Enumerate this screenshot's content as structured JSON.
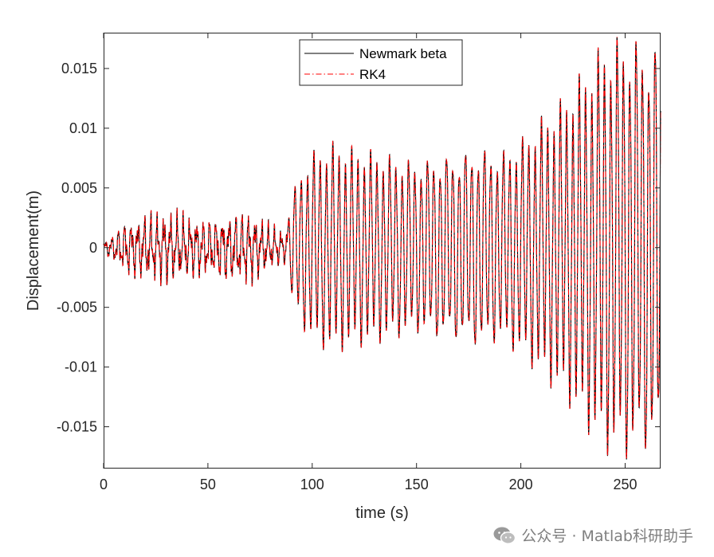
{
  "chart_data": {
    "type": "line",
    "title": "",
    "xlabel": "time (s)",
    "ylabel": "Displacement(m)",
    "xlim": [
      0,
      267
    ],
    "ylim": [
      -0.0185,
      0.018
    ],
    "xticks": [
      0,
      50,
      100,
      150,
      200,
      250
    ],
    "xtick_labels": [
      "0",
      "50",
      "100",
      "150",
      "200",
      "250"
    ],
    "yticks": [
      -0.015,
      -0.01,
      -0.005,
      0,
      0.005,
      0.01,
      0.015
    ],
    "ytick_labels": [
      "-0.015",
      "-0.01",
      "-0.005",
      "0",
      "0.005",
      "0.01",
      "0.015"
    ],
    "legend_position": "top-center",
    "series": [
      {
        "name": "Newmark beta",
        "color": "#000000",
        "style": "solid",
        "envelope_t": [
          0,
          5,
          10,
          20,
          30,
          40,
          50,
          60,
          70,
          80,
          87,
          90,
          95,
          100,
          110,
          120,
          130,
          140,
          150,
          160,
          170,
          180,
          190,
          200,
          210,
          220,
          230,
          240,
          250,
          260,
          267
        ],
        "envelope_amp": [
          0.0005,
          0.0012,
          0.0022,
          0.0028,
          0.0031,
          0.0027,
          0.0024,
          0.0029,
          0.0031,
          0.0019,
          0.0014,
          0.0043,
          0.0065,
          0.0078,
          0.0084,
          0.0079,
          0.0077,
          0.0074,
          0.0072,
          0.0078,
          0.0082,
          0.0086,
          0.0079,
          0.0088,
          0.0104,
          0.0118,
          0.0142,
          0.0168,
          0.0179,
          0.0178,
          0.0176
        ]
      },
      {
        "name": "RK4",
        "color": "#ff0000",
        "style": "dashdot",
        "envelope_t": [
          0,
          5,
          10,
          20,
          30,
          40,
          50,
          60,
          70,
          80,
          87,
          90,
          95,
          100,
          110,
          120,
          130,
          140,
          150,
          160,
          170,
          180,
          190,
          200,
          210,
          220,
          230,
          240,
          250,
          260,
          267
        ],
        "envelope_amp": [
          0.0005,
          0.0012,
          0.0022,
          0.0028,
          0.0031,
          0.0027,
          0.0024,
          0.0029,
          0.0031,
          0.0019,
          0.0014,
          0.0043,
          0.0065,
          0.0078,
          0.0084,
          0.0079,
          0.0077,
          0.0074,
          0.0072,
          0.0078,
          0.0082,
          0.0086,
          0.0079,
          0.0088,
          0.0104,
          0.0118,
          0.0142,
          0.0168,
          0.0179,
          0.0178,
          0.0176
        ]
      }
    ]
  },
  "watermark": {
    "icon": "wechat-icon",
    "text": "公众号 · Matlab科研助手"
  }
}
